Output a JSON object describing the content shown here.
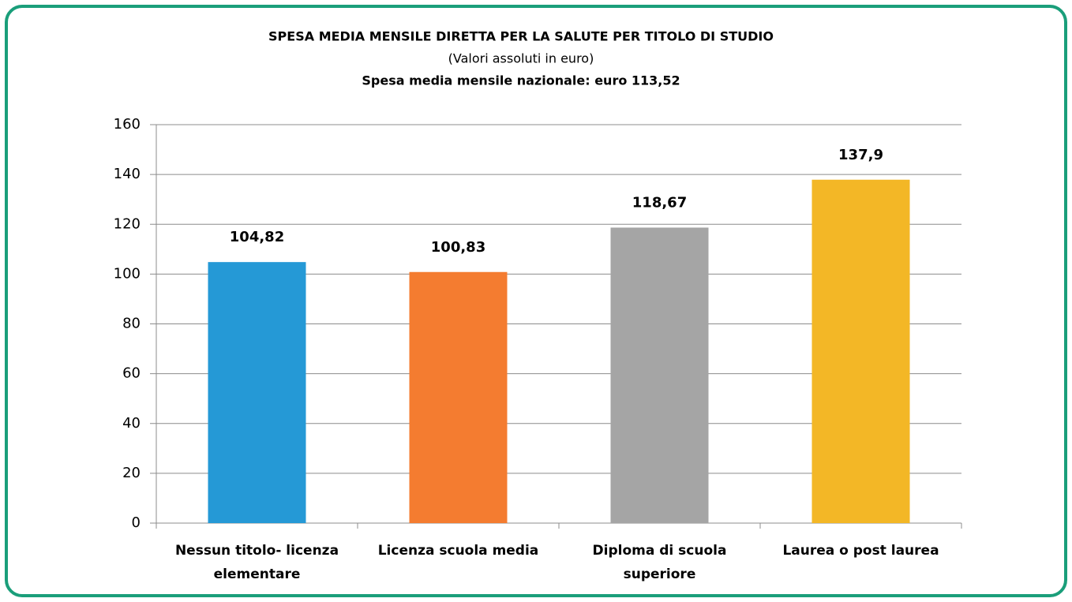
{
  "chart_data": {
    "type": "bar",
    "title": "SPESA MEDIA MENSILE  DIRETTA PER LA SALUTE PER TITOLO DI STUDIO",
    "subtitle": "(Valori assoluti in euro)",
    "annotation": "Spesa media mensile nazionale:  euro 113,52",
    "categories": [
      "Nessun titolo- licenza elementare",
      "Licenza scuola media",
      "Diploma di scuola superiore",
      "Laurea o post laurea"
    ],
    "values": [
      104.82,
      100.83,
      118.67,
      137.9
    ],
    "value_labels": [
      "104,82",
      "100,83",
      "118,67",
      "137,9"
    ],
    "colors": [
      "#2599d6",
      "#f47c30",
      "#a5a5a5",
      "#f3b726"
    ],
    "ylim": [
      0,
      160
    ],
    "yticks": [
      0,
      20,
      40,
      60,
      80,
      100,
      120,
      140,
      160
    ],
    "grid": true
  }
}
